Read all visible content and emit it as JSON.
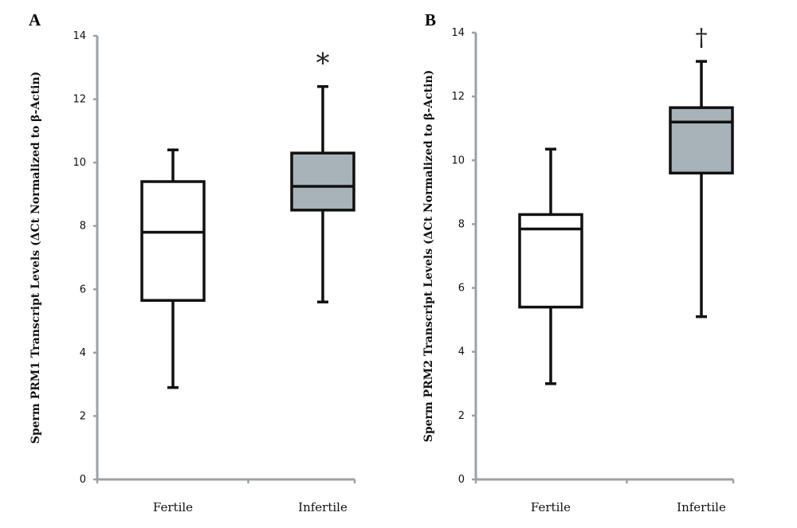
{
  "chart_data": [
    {
      "type": "box",
      "panel_label": "A",
      "ylabel": "Sperm PRM1 Transcript Levels (ΔCt Normalized to β-Actin)",
      "xlabel": "",
      "ylim": [
        0,
        14
      ],
      "yticks": [
        "0",
        "2",
        "4",
        "6",
        "8",
        "10",
        "12",
        "14"
      ],
      "grid": false,
      "categories": [
        "Fertile",
        "Infertile"
      ],
      "boxes": [
        {
          "category": "Fertile",
          "min": 2.9,
          "q1": 5.65,
          "median": 7.8,
          "q3": 9.4,
          "max": 10.4,
          "fill": "#ffffff"
        },
        {
          "category": "Infertile",
          "min": 5.6,
          "q1": 8.5,
          "median": 9.25,
          "q3": 10.3,
          "max": 12.4,
          "fill": "#a7b3b8"
        }
      ],
      "annotations": [
        {
          "category": "Infertile",
          "text": "*"
        }
      ]
    },
    {
      "type": "box",
      "panel_label": "B",
      "ylabel": "Sperm PRM2 Transcript Levels (ΔCt Normalized to β-Actin)",
      "xlabel": "",
      "ylim": [
        0,
        14
      ],
      "yticks": [
        "0",
        "2",
        "4",
        "6",
        "8",
        "10",
        "12",
        "14"
      ],
      "grid": false,
      "categories": [
        "Fertile",
        "Infertile"
      ],
      "boxes": [
        {
          "category": "Fertile",
          "min": 3.0,
          "q1": 5.4,
          "median": 7.85,
          "q3": 8.3,
          "max": 10.35,
          "fill": "#ffffff"
        },
        {
          "category": "Infertile",
          "min": 5.1,
          "q1": 9.6,
          "median": 11.2,
          "q3": 11.65,
          "max": 13.1,
          "fill": "#a7b3b8"
        }
      ],
      "annotations": [
        {
          "category": "Infertile",
          "text": "†"
        }
      ]
    }
  ]
}
